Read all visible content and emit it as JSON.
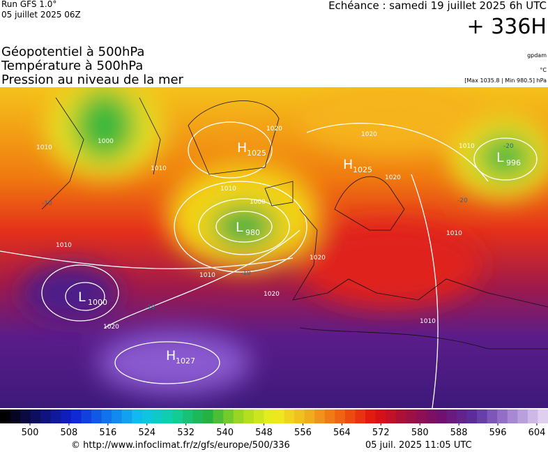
{
  "header": {
    "run": "Run GFS 1.0°",
    "run_date": "05 juillet 2025 06Z",
    "echeance": "Echéance : samedi 19 juillet 2025 6h UTC",
    "horizon": "+ 336H"
  },
  "layers": [
    "Géopotentiel à 500hPa",
    "Température à 500hPa",
    "Pression au niveau de la mer"
  ],
  "units": [
    "gpdam",
    "°C",
    "[Max 1035.8 | Min 980.5] hPa"
  ],
  "pressure_centers": [
    {
      "letter": "H",
      "value": "1025"
    },
    {
      "letter": "H",
      "value": "1025"
    },
    {
      "letter": "L",
      "value": "980"
    },
    {
      "letter": "L",
      "value": "996"
    },
    {
      "letter": "L",
      "value": "1000"
    },
    {
      "letter": "H",
      "value": "1027"
    }
  ],
  "isobar_labels": [
    "1010",
    "1000",
    "1010",
    "1020",
    "1020",
    "1020",
    "1010",
    "1010",
    "1000",
    "1010",
    "1010",
    "1020",
    "1020",
    "1020",
    "1010",
    "1010"
  ],
  "isotherm_labels": [
    "-10",
    "-20",
    "-20",
    "-10",
    "-10"
  ],
  "colorbar": {
    "ticks": [
      500,
      508,
      516,
      524,
      532,
      540,
      548,
      556,
      564,
      572,
      580,
      588,
      596,
      604
    ]
  },
  "footer": {
    "url": "© http://www.infoclimat.fr/z/gfs/europe/500/336",
    "timestamp": "05 juil. 2025 11:05 UTC"
  }
}
